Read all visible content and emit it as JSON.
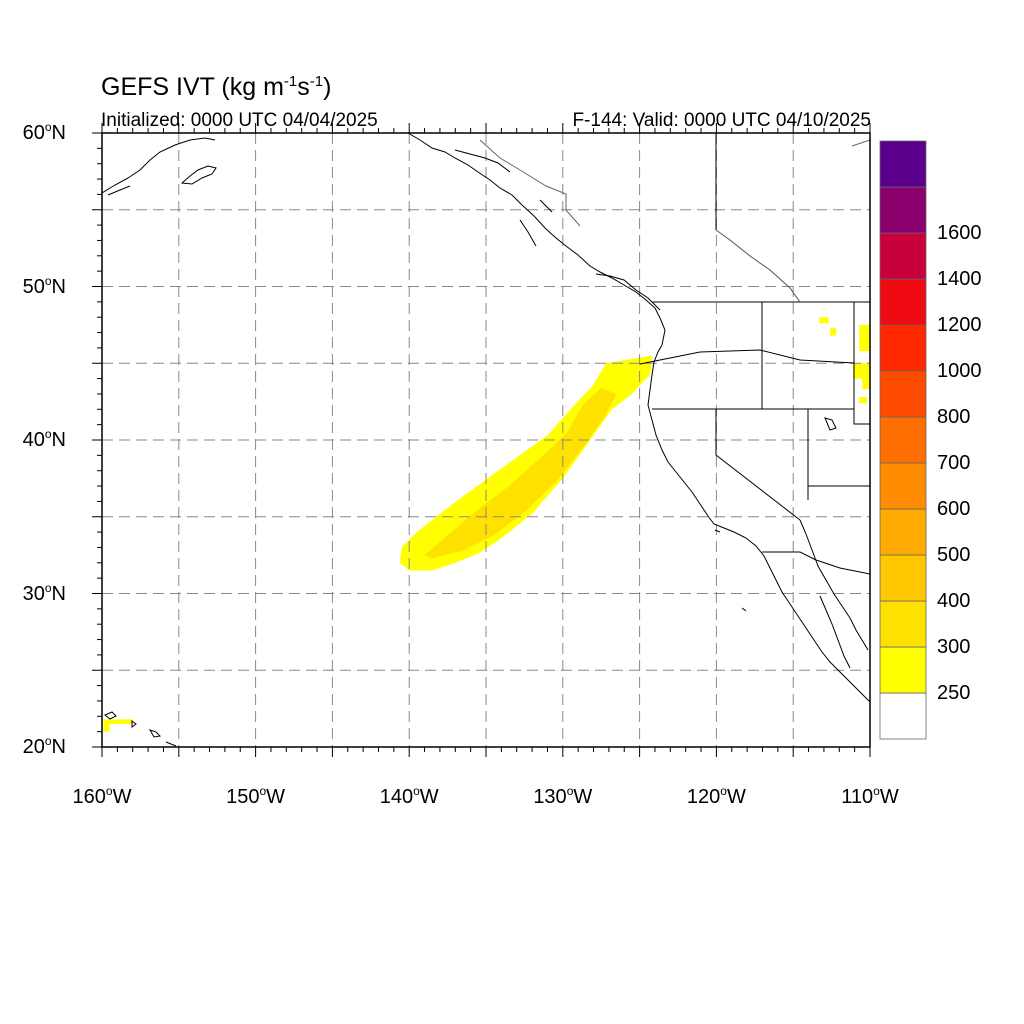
{
  "title": {
    "text": "GEFS IVT (kg m",
    "exp1": "-1",
    "mid": "s",
    "exp2": "-1",
    "close": ")"
  },
  "subtitle_left": "Initialized: 0000 UTC 04/04/2025",
  "subtitle_right": "F-144: Valid: 0000 UTC 04/10/2025",
  "map": {
    "lon_range": [
      -160,
      -110
    ],
    "lat_range": [
      20,
      60
    ],
    "grid_spacing_deg": 5,
    "grid_style": "dashed",
    "lat_labels": [
      {
        "value": 60,
        "text": "60",
        "dir": "N"
      },
      {
        "value": 50,
        "text": "50",
        "dir": "N"
      },
      {
        "value": 40,
        "text": "40",
        "dir": "N"
      },
      {
        "value": 30,
        "text": "30",
        "dir": "N"
      },
      {
        "value": 20,
        "text": "20",
        "dir": "N"
      }
    ],
    "lon_labels": [
      {
        "value": -160,
        "text": "160",
        "dir": "W"
      },
      {
        "value": -150,
        "text": "150",
        "dir": "W"
      },
      {
        "value": -140,
        "text": "140",
        "dir": "W"
      },
      {
        "value": -130,
        "text": "130",
        "dir": "W"
      },
      {
        "value": -120,
        "text": "120",
        "dir": "W"
      },
      {
        "value": -110,
        "text": "110",
        "dir": "W"
      }
    ],
    "ivt_plume": {
      "description_level": "250-400 kg m-1 s-1",
      "outer_color": "#ffff00",
      "inner_color": "#ffe100",
      "outer_polygon_lonlat": [
        [
          -140.6,
          32.0
        ],
        [
          -140.5,
          33.0
        ],
        [
          -139.5,
          34.0
        ],
        [
          -138.0,
          35.2
        ],
        [
          -136.0,
          36.7
        ],
        [
          -133.5,
          38.5
        ],
        [
          -131.0,
          40.3
        ],
        [
          -129.5,
          42.0
        ],
        [
          -128.0,
          43.6
        ],
        [
          -127.2,
          45.0
        ],
        [
          -124.2,
          45.5
        ],
        [
          -124.3,
          44.3
        ],
        [
          -125.5,
          43.0
        ],
        [
          -126.8,
          42.0
        ],
        [
          -128.0,
          40.3
        ],
        [
          -130.0,
          37.5
        ],
        [
          -132.0,
          35.2
        ],
        [
          -134.0,
          33.6
        ],
        [
          -135.5,
          32.6
        ],
        [
          -137.0,
          32.0
        ],
        [
          -138.5,
          31.5
        ],
        [
          -140.0,
          31.5
        ]
      ],
      "inner_polygon_lonlat": [
        [
          -139.0,
          32.5
        ],
        [
          -137.5,
          33.8
        ],
        [
          -135.5,
          35.5
        ],
        [
          -133.5,
          37.0
        ],
        [
          -131.5,
          38.8
        ],
        [
          -129.7,
          40.5
        ],
        [
          -128.7,
          42.3
        ],
        [
          -127.5,
          43.4
        ],
        [
          -126.5,
          43.0
        ],
        [
          -127.3,
          41.5
        ],
        [
          -128.7,
          39.5
        ],
        [
          -130.5,
          37.2
        ],
        [
          -132.5,
          35.3
        ],
        [
          -134.5,
          33.8
        ],
        [
          -136.5,
          32.8
        ],
        [
          -138.5,
          32.3
        ]
      ],
      "small_patches_lonlat": [
        [
          [
            -159.9,
            21.0
          ],
          [
            -159.5,
            21.0
          ],
          [
            -159.5,
            21.5
          ],
          [
            -158.0,
            21.5
          ],
          [
            -158.0,
            21.8
          ],
          [
            -159.9,
            21.8
          ]
        ],
        [
          [
            -113.3,
            48.0
          ],
          [
            -112.7,
            48.0
          ],
          [
            -112.7,
            47.6
          ],
          [
            -113.3,
            47.6
          ]
        ],
        [
          [
            -112.6,
            47.3
          ],
          [
            -112.2,
            47.3
          ],
          [
            -112.2,
            46.8
          ],
          [
            -112.6,
            46.8
          ]
        ],
        [
          [
            -110.7,
            47.5
          ],
          [
            -110.0,
            47.5
          ],
          [
            -110.0,
            45.8
          ],
          [
            -110.7,
            45.8
          ]
        ],
        [
          [
            -111.1,
            45.0
          ],
          [
            -110.0,
            45.0
          ],
          [
            -110.0,
            43.3
          ],
          [
            -110.5,
            43.3
          ],
          [
            -110.5,
            44.0
          ],
          [
            -111.1,
            44.0
          ]
        ],
        [
          [
            -110.7,
            42.8
          ],
          [
            -110.2,
            42.8
          ],
          [
            -110.2,
            42.4
          ],
          [
            -110.7,
            42.4
          ]
        ]
      ]
    }
  },
  "colorbar": {
    "colors": [
      "#ffffff",
      "#ffff00",
      "#ffe100",
      "#ffc800",
      "#ffaa00",
      "#ff8c00",
      "#ff6e00",
      "#ff4b00",
      "#ff2800",
      "#f00a14",
      "#c8003c",
      "#8c006e",
      "#5a008c"
    ],
    "labels": [
      "250",
      "300",
      "400",
      "500",
      "600",
      "700",
      "800",
      "1000",
      "1200",
      "1400",
      "1600"
    ]
  }
}
